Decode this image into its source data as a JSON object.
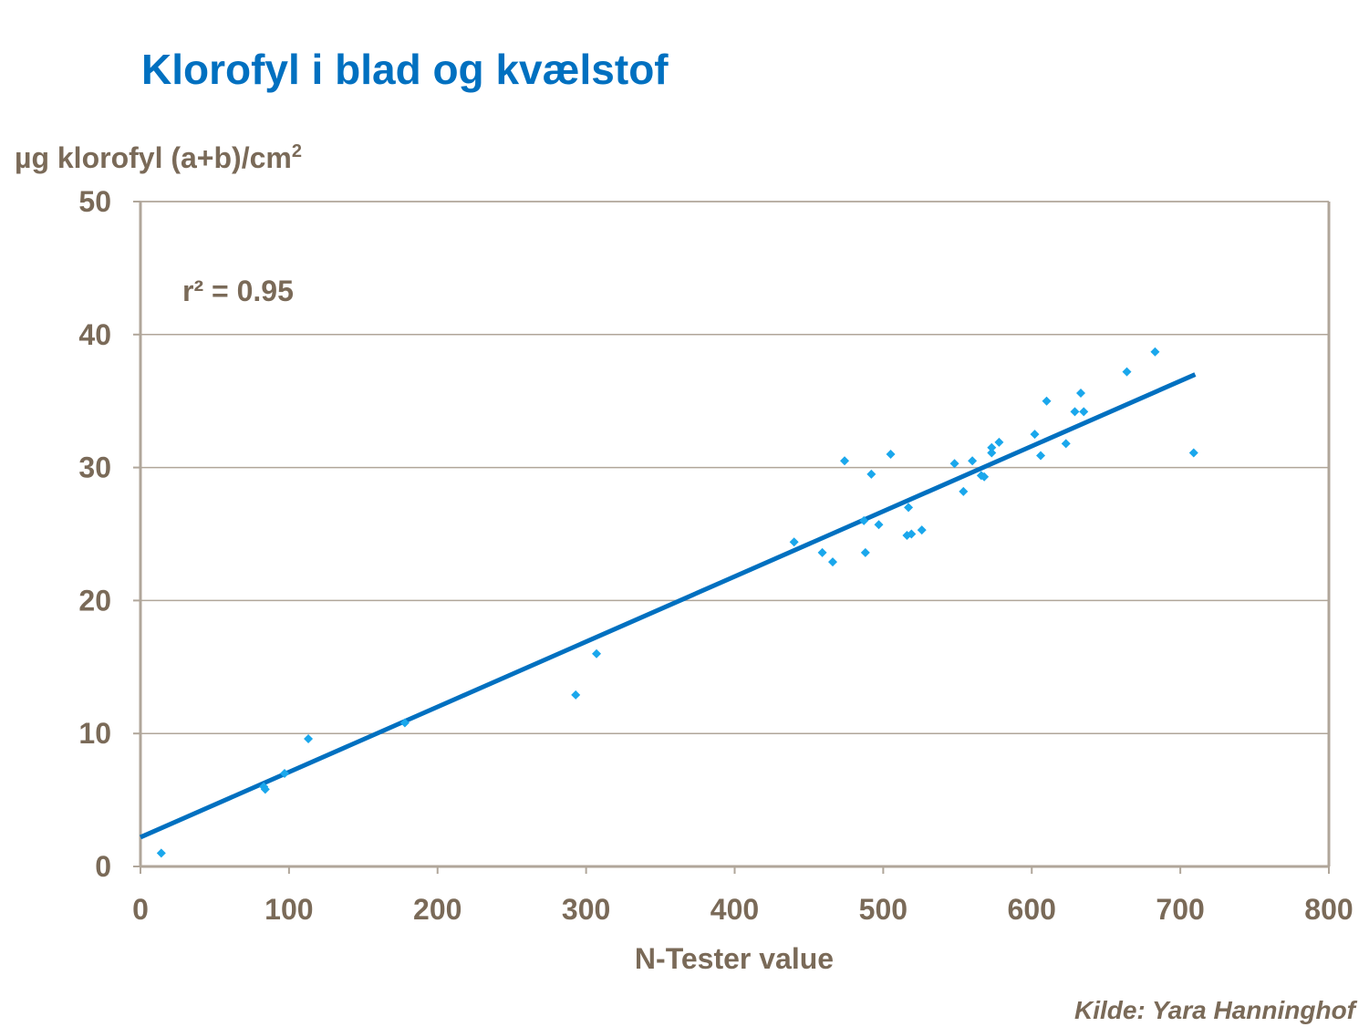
{
  "colors": {
    "title": "#0070c0",
    "text": "#7a6a58",
    "grid": "#b0a69a",
    "frame": "#b0a69a",
    "points": "#1aa7ec",
    "trendline": "#0070c0"
  },
  "chart_data": {
    "type": "scatter",
    "title": "Klorofyl i blad og kvælstof",
    "ylabel_main": "µg klorofyl (a+b)/cm",
    "ylabel_sup": "2",
    "xlabel": "N-Tester value",
    "annotation": "r² = 0.95",
    "source": "Kilde:  Yara Hanninghof",
    "xlim": [
      0,
      800
    ],
    "ylim": [
      0,
      50
    ],
    "xticks": [
      0,
      100,
      200,
      300,
      400,
      500,
      600,
      700,
      800
    ],
    "yticks": [
      0,
      10,
      20,
      30,
      40,
      50
    ],
    "grid": "horizontal",
    "series": [
      {
        "points": [
          [
            14,
            1.0
          ],
          [
            83,
            6.0
          ],
          [
            84,
            5.8
          ],
          [
            97,
            7.0
          ],
          [
            113,
            9.6
          ],
          [
            178,
            10.8
          ],
          [
            293,
            12.9
          ],
          [
            307,
            16.0
          ],
          [
            440,
            24.4
          ],
          [
            459,
            23.6
          ],
          [
            466,
            22.9
          ],
          [
            474,
            30.5
          ],
          [
            487,
            26.0
          ],
          [
            488,
            23.6
          ],
          [
            492,
            29.5
          ],
          [
            497,
            25.7
          ],
          [
            505,
            31.0
          ],
          [
            516,
            24.9
          ],
          [
            517,
            27.0
          ],
          [
            519,
            25.0
          ],
          [
            526,
            25.3
          ],
          [
            548,
            30.3
          ],
          [
            554,
            28.2
          ],
          [
            560,
            30.5
          ],
          [
            566,
            29.4
          ],
          [
            568,
            29.3
          ],
          [
            573,
            31.5
          ],
          [
            573,
            31.1
          ],
          [
            578,
            31.9
          ],
          [
            602,
            32.5
          ],
          [
            606,
            30.9
          ],
          [
            610,
            35.0
          ],
          [
            623,
            31.8
          ],
          [
            629,
            34.2
          ],
          [
            633,
            35.6
          ],
          [
            635,
            34.2
          ],
          [
            664,
            37.2
          ],
          [
            683,
            38.7
          ],
          [
            709,
            31.1
          ]
        ]
      }
    ],
    "trendline": {
      "x": [
        0,
        710
      ],
      "y": [
        2.2,
        37.0
      ]
    }
  }
}
